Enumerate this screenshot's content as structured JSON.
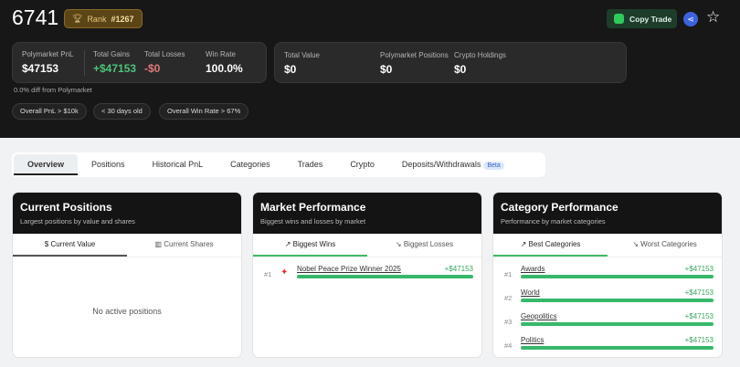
{
  "header": {
    "title": "6741",
    "rank_label": "Rank",
    "rank_value": "#1267",
    "copy_trade": "Copy Trade"
  },
  "stats": {
    "pnl_label": "Polymarket PnL",
    "pnl": "$47153",
    "gains_label": "Total Gains",
    "gains": "+$47153",
    "losses_label": "Total Losses",
    "losses": "-$0",
    "winrate_label": "Win Rate",
    "winrate": "100.0%",
    "total_value_label": "Total Value",
    "total_value": "$0",
    "positions_label": "Polymarket Positions",
    "positions": "$0",
    "crypto_label": "Crypto Holdings",
    "crypto": "$0",
    "diff": "0.0% diff from Polymarket"
  },
  "chips": [
    "Overall PnL > $10k",
    "< 30 days old",
    "Overall Win Rate > 67%"
  ],
  "tabs": [
    "Overview",
    "Positions",
    "Historical PnL",
    "Categories",
    "Trades",
    "Crypto",
    "Deposits/Withdrawals"
  ],
  "beta": "Beta",
  "current": {
    "title": "Current Positions",
    "subtitle": "Largest positions by value and shares",
    "tab1": "Current Value",
    "tab2": "Current Shares",
    "empty": "No active positions"
  },
  "market": {
    "title": "Market Performance",
    "subtitle": "Biggest wins and losses by market",
    "tab1": "Biggest Wins",
    "tab2": "Biggest Losses",
    "rows": [
      {
        "rank": "#1",
        "name": "Nobel Peace Prize Winner 2025",
        "value": "+$47153"
      }
    ]
  },
  "category": {
    "title": "Category Performance",
    "subtitle": "Performance by market categories",
    "tab1": "Best Categories",
    "tab2": "Worst Categories",
    "rows": [
      {
        "rank": "#1",
        "name": "Awards",
        "value": "+$47153"
      },
      {
        "rank": "#2",
        "name": "World",
        "value": "+$47153"
      },
      {
        "rank": "#3",
        "name": "Geopolitics",
        "value": "+$47153"
      },
      {
        "rank": "#4",
        "name": "Politics",
        "value": "+$47153"
      }
    ]
  },
  "colors": {
    "gain": "#36b86a",
    "loss": "#e07a7a",
    "rank_gold": "#e6c57a"
  }
}
